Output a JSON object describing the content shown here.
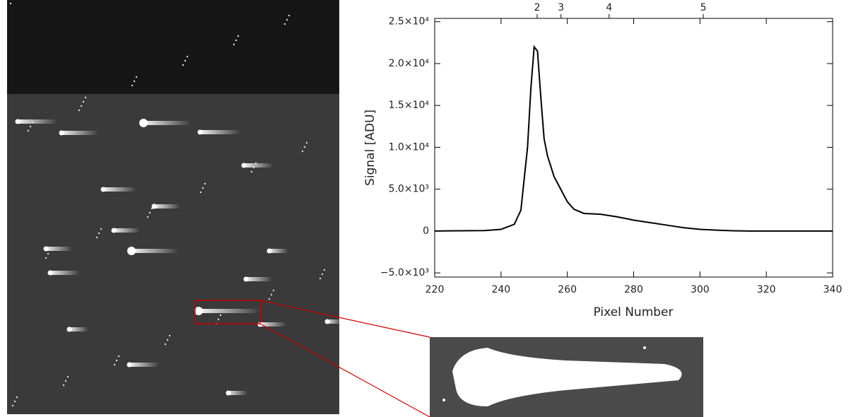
{
  "chart_data": {
    "type": "line",
    "xlabel": "Pixel Number",
    "ylabel": "Signal [ADU]",
    "x": [
      220,
      235,
      240,
      244,
      246,
      248,
      249,
      250,
      251,
      252,
      253,
      254,
      256,
      258,
      260,
      262,
      265,
      270,
      275,
      280,
      285,
      290,
      295,
      300,
      305,
      310,
      315,
      340
    ],
    "values": [
      0,
      50,
      200,
      800,
      2500,
      10000,
      17000,
      22000,
      21500,
      16000,
      11000,
      9000,
      6500,
      5000,
      3500,
      2600,
      2100,
      2000,
      1700,
      1300,
      1000,
      700,
      400,
      200,
      100,
      30,
      0,
      0
    ],
    "color": "#000000",
    "xlim": [
      220,
      340
    ],
    "xticks": [
      220,
      240,
      260,
      280,
      300,
      320,
      340
    ],
    "x2ticks": [
      {
        "value": 250.9,
        "label": "2"
      },
      {
        "value": 258.1,
        "label": "3"
      },
      {
        "value": 272.6,
        "label": "4"
      },
      {
        "value": 301,
        "label": "5"
      }
    ],
    "ylim": [
      -5500,
      25400
    ],
    "yticks": [
      {
        "value": -5000,
        "label": "−5.0×10³"
      },
      0,
      {
        "value": 5000,
        "label": "5.0×10³"
      },
      {
        "value": 10000,
        "label": "1.0×10⁴"
      },
      {
        "value": 15000,
        "label": "1.5×10⁴"
      },
      {
        "value": 20000,
        "label": "2.0×10⁴"
      },
      {
        "value": 25000,
        "label": "2.5×10⁴"
      }
    ]
  }
}
